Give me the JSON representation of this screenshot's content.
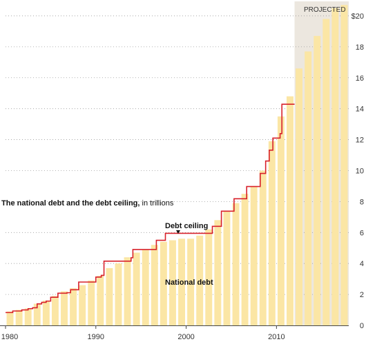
{
  "chart_data": {
    "type": "bar",
    "title": "The national debt and the debt ceiling,",
    "title_suffix": " in trillions",
    "x_tick_labels": [
      "1980",
      "1990",
      "2000",
      "2010"
    ],
    "y_tick_labels": [
      "0",
      "2",
      "4",
      "6",
      "8",
      "10",
      "12",
      "14",
      "16",
      "18",
      "$20"
    ],
    "ylim": [
      0,
      20.8
    ],
    "grid": true,
    "projected_label": "PROJECTED",
    "projected_from_year": 2012,
    "annotations": {
      "debt_ceiling": "Debt ceiling",
      "national_debt": "National debt"
    },
    "series": [
      {
        "name": "National debt",
        "type": "bar",
        "years": [
          1980,
          1981,
          1982,
          1983,
          1984,
          1985,
          1986,
          1987,
          1988,
          1989,
          1990,
          1991,
          1992,
          1993,
          1994,
          1995,
          1996,
          1997,
          1998,
          1999,
          2000,
          2001,
          2002,
          2003,
          2004,
          2005,
          2006,
          2007,
          2008,
          2009,
          2010,
          2011,
          2012,
          2013,
          2014,
          2015,
          2016,
          2017
        ],
        "values": [
          0.9,
          1.0,
          1.1,
          1.4,
          1.6,
          1.9,
          2.2,
          2.4,
          2.6,
          2.9,
          3.2,
          3.7,
          4.0,
          4.4,
          4.7,
          4.9,
          5.2,
          5.4,
          5.5,
          5.6,
          5.6,
          5.8,
          6.2,
          6.8,
          7.4,
          7.9,
          8.5,
          9.0,
          10.0,
          11.9,
          13.5,
          14.8,
          16.6,
          17.7,
          18.7,
          19.8,
          20.5,
          20.7
        ]
      },
      {
        "name": "Debt ceiling",
        "type": "step",
        "points": [
          [
            1979.5,
            0.83
          ],
          [
            1980.3,
            0.93
          ],
          [
            1981.3,
            1.0
          ],
          [
            1982.0,
            1.08
          ],
          [
            1982.5,
            1.14
          ],
          [
            1983.0,
            1.39
          ],
          [
            1983.5,
            1.49
          ],
          [
            1984.0,
            1.57
          ],
          [
            1984.5,
            1.82
          ],
          [
            1985.3,
            2.08
          ],
          [
            1986.3,
            2.11
          ],
          [
            1986.7,
            2.3
          ],
          [
            1987.6,
            2.8
          ],
          [
            1989.5,
            3.12
          ],
          [
            1990.1,
            3.23
          ],
          [
            1990.4,
            4.15
          ],
          [
            1993.4,
            4.37
          ],
          [
            1993.6,
            4.9
          ],
          [
            1996.2,
            5.5
          ],
          [
            1997.2,
            5.95
          ],
          [
            2002.4,
            6.4
          ],
          [
            2003.4,
            7.38
          ],
          [
            2004.8,
            8.18
          ],
          [
            2006.2,
            8.97
          ],
          [
            2007.7,
            9.82
          ],
          [
            2008.3,
            10.62
          ],
          [
            2008.7,
            11.32
          ],
          [
            2009.1,
            12.1
          ],
          [
            2009.9,
            12.39
          ],
          [
            2010.1,
            14.29
          ],
          [
            2011.5,
            14.29
          ]
        ]
      }
    ]
  }
}
